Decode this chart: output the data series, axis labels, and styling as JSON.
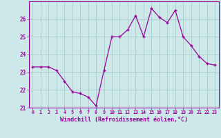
{
  "hours": [
    0,
    1,
    2,
    3,
    4,
    5,
    6,
    7,
    8,
    9,
    10,
    11,
    12,
    13,
    14,
    15,
    16,
    17,
    18,
    19,
    20,
    21,
    22,
    23
  ],
  "values": [
    23.3,
    23.3,
    23.3,
    23.1,
    22.5,
    21.9,
    21.8,
    21.6,
    21.1,
    23.1,
    25.0,
    25.0,
    25.4,
    26.2,
    25.0,
    26.6,
    26.1,
    25.8,
    26.5,
    25.0,
    24.5,
    23.9,
    23.5,
    23.4
  ],
  "line_color": "#990099",
  "marker": "+",
  "marker_size": 3.5,
  "bg_color": "#cce8e8",
  "grid_color": "#aacccc",
  "xlabel": "Windchill (Refroidissement éolien,°C)",
  "xlabel_color": "#990099",
  "tick_color": "#990099",
  "ylim": [
    21.0,
    27.0
  ],
  "yticks": [
    21,
    22,
    23,
    24,
    25,
    26
  ],
  "xticks": [
    0,
    1,
    2,
    3,
    4,
    5,
    6,
    7,
    8,
    9,
    10,
    11,
    12,
    13,
    14,
    15,
    16,
    17,
    18,
    19,
    20,
    21,
    22,
    23
  ],
  "border_color": "#990099"
}
